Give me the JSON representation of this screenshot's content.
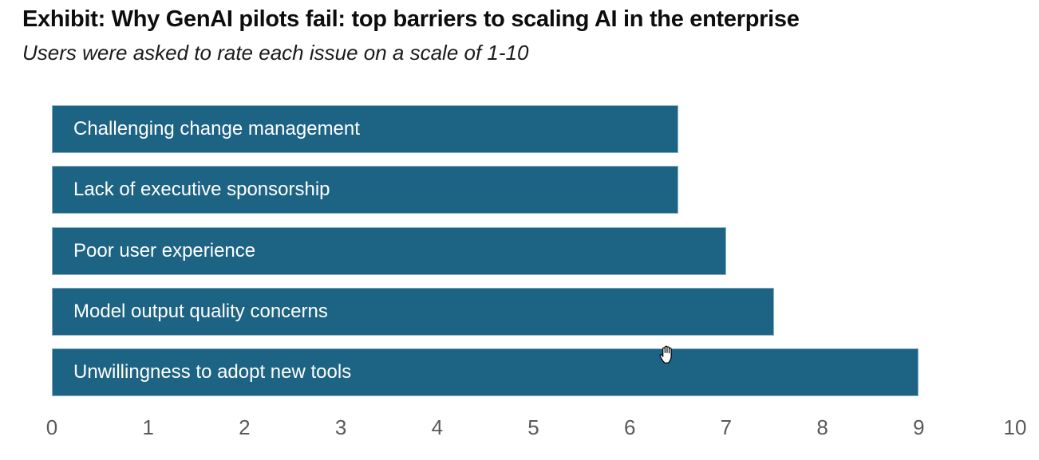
{
  "header": {
    "title": "Exhibit: Why GenAI pilots fail: top barriers to scaling AI in the enterprise",
    "subtitle": "Users were asked to rate each issue on a scale of 1-10"
  },
  "chart_data": {
    "type": "bar",
    "orientation": "horizontal",
    "title": "Exhibit: Why GenAI pilots fail: top barriers to scaling AI in the enterprise",
    "subtitle": "Users were asked to rate each issue on a scale of 1-10",
    "categories": [
      "Challenging change management",
      "Lack of executive sponsorship",
      "Poor user experience",
      "Model output quality concerns",
      "Unwillingness to adopt new tools"
    ],
    "values": [
      6.5,
      6.5,
      7,
      7.5,
      9
    ],
    "xlabel": "",
    "ylabel": "",
    "xlim": [
      0,
      10
    ],
    "x_ticks": [
      0,
      1,
      2,
      3,
      4,
      5,
      6,
      7,
      8,
      9,
      10
    ],
    "grid": false,
    "legend": false,
    "label_position": "inside-left",
    "colors": {
      "bar": "#1d6384",
      "bar_label": "#ffffff",
      "axis_ticks": "#595959"
    }
  },
  "cursor": {
    "type": "open-hand"
  }
}
